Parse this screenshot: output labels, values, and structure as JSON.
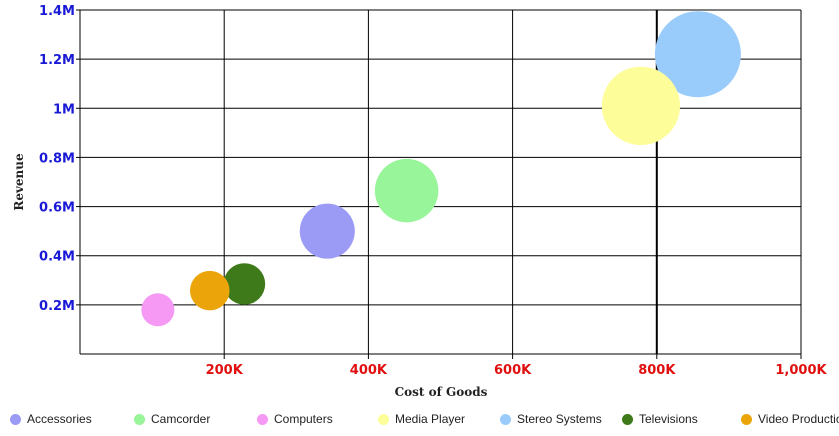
{
  "chart_data": {
    "type": "scatter",
    "subtype": "bubble",
    "title": "",
    "xlabel": "Cost of Goods",
    "ylabel": "Revenue",
    "xlim": [
      0,
      1000000
    ],
    "ylim": [
      0,
      1400000
    ],
    "grid": true,
    "legend_position": "bottom",
    "x_ticks": [
      {
        "value": 200000,
        "label": "200K"
      },
      {
        "value": 400000,
        "label": "400K"
      },
      {
        "value": 600000,
        "label": "600K"
      },
      {
        "value": 800000,
        "label": "800K"
      },
      {
        "value": 1000000,
        "label": "1,000K"
      }
    ],
    "y_ticks": [
      {
        "value": 200000,
        "label": "0.2M"
      },
      {
        "value": 400000,
        "label": "0.4M"
      },
      {
        "value": 600000,
        "label": "0.6M"
      },
      {
        "value": 800000,
        "label": "0.8M"
      },
      {
        "value": 1000000,
        "label": "1M"
      },
      {
        "value": 1200000,
        "label": "1.2M"
      },
      {
        "value": 1400000,
        "label": "1.4M"
      }
    ],
    "series": [
      {
        "name": "Accessories",
        "color": "#9b9bf5",
        "x": 343000,
        "y": 500000,
        "size": 500000
      },
      {
        "name": "Camcorder",
        "color": "#99f599",
        "x": 453000,
        "y": 665000,
        "size": 665000
      },
      {
        "name": "Computers",
        "color": "#f599f5",
        "x": 108000,
        "y": 180000,
        "size": 180000
      },
      {
        "name": "Media Player",
        "color": "#fdfd99",
        "x": 778000,
        "y": 1010000,
        "size": 1010000
      },
      {
        "name": "Stereo Systems",
        "color": "#99ccfa",
        "x": 857000,
        "y": 1220000,
        "size": 1220000
      },
      {
        "name": "Televisions",
        "color": "#3f7a1a",
        "x": 228000,
        "y": 285000,
        "size": 285000
      },
      {
        "name": "Video Production",
        "color": "#eba50a",
        "x": 180000,
        "y": 258000,
        "size": 258000
      }
    ]
  }
}
